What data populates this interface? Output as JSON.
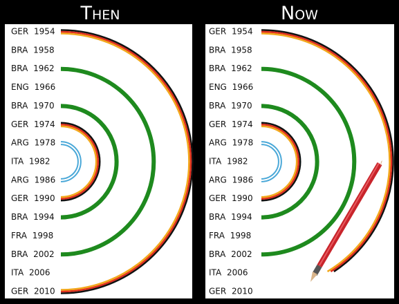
{
  "panels": [
    {
      "title": "Then",
      "labels": [
        "GER 1954",
        "BRA 1958",
        "BRA 1962",
        "ENG 1966",
        "BRA 1970",
        "GER 1974",
        "ARG 1978",
        "ITA 1982",
        "ARG 1986",
        "GER 1990",
        "BRA 1994",
        "FRA 1998",
        "BRA 2002",
        "ITA 2006",
        "GER 2010"
      ]
    },
    {
      "title": "Now",
      "labels": [
        "GER 1954",
        "BRA 1958",
        "BRA 1962",
        "ENG 1966",
        "BRA 1970",
        "GER 1974",
        "ARG 1978",
        "ITA 1982",
        "ARG 1986",
        "GER 1990",
        "BRA 1994",
        "FRA 1998",
        "BRA 2002",
        "ITA 2006",
        "GER 2010"
      ]
    }
  ]
}
